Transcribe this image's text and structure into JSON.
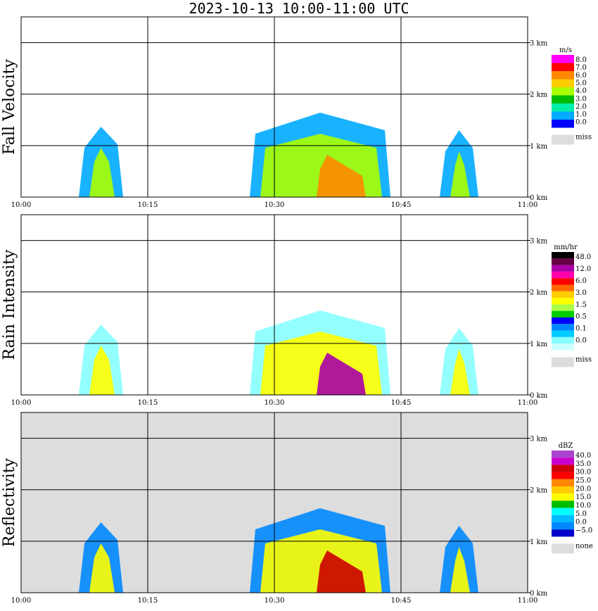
{
  "title": "2023-10-13   10:00-11:00 UTC",
  "chart_data": [
    {
      "type": "heatmap",
      "ylabel": "Fall Velocity",
      "x_ticks": [
        "10:00",
        "10:15",
        "10:30",
        "10:45",
        "11:00"
      ],
      "y_ticks": [
        "0 km",
        "1 km",
        "2 km",
        "3 km"
      ],
      "xlim_minutes": [
        0,
        60
      ],
      "ylim_km": [
        0,
        3.5
      ],
      "colorbar": {
        "unit": "m/s",
        "labels": [
          "8.0",
          "7.0",
          "6.0",
          "5.0",
          "4.0",
          "3.0",
          "2.0",
          "1.0",
          "0.0"
        ],
        "colors": [
          "#ff00ff",
          "#ff0000",
          "#ff8800",
          "#ffcc00",
          "#aaff00",
          "#00bb00",
          "#00eeaa",
          "#00aaff",
          "#0000ff"
        ],
        "missing_label": "miss"
      }
    },
    {
      "type": "heatmap",
      "ylabel": "Rain Intensity",
      "x_ticks": [
        "10:00",
        "10:15",
        "10:30",
        "10:45",
        "11:00"
      ],
      "y_ticks": [
        "0 km",
        "1 km",
        "2 km",
        "3 km"
      ],
      "xlim_minutes": [
        0,
        60
      ],
      "ylim_km": [
        0,
        3.5
      ],
      "colorbar": {
        "unit": "mm/hr",
        "labels": [
          "48.0",
          "12.0",
          "6.0",
          "3.0",
          "1.5",
          "0.5",
          "0.1",
          "0.0"
        ],
        "colors": [
          "#000000",
          "#660044",
          "#aa00aa",
          "#ff00aa",
          "#ff0000",
          "#ff6600",
          "#ffcc00",
          "#ffff00",
          "#aaff44",
          "#00cc00",
          "#0000ff",
          "#0088ff",
          "#00ccff",
          "#88ffff",
          "#ccffff"
        ],
        "missing_label": "miss"
      }
    },
    {
      "type": "heatmap",
      "ylabel": "Reflectivity",
      "x_ticks": [
        "10:00",
        "10:15",
        "10:30",
        "10:45",
        "11:00"
      ],
      "y_ticks": [
        "0 km",
        "1 km",
        "2 km",
        "3 km"
      ],
      "xlim_minutes": [
        0,
        60
      ],
      "ylim_km": [
        0,
        3.5
      ],
      "colorbar": {
        "unit": "dBZ",
        "labels": [
          "40.0",
          "35.0",
          "30.0",
          "25.0",
          "20.0",
          "15.0",
          "10.0",
          "5.0",
          "0.0",
          "−5.0"
        ],
        "colors": [
          "#aa44cc",
          "#cc00cc",
          "#cc0000",
          "#ff0000",
          "#ff8800",
          "#ffcc00",
          "#ffff00",
          "#00bb00",
          "#00ffff",
          "#00bbff",
          "#0088ff",
          "#0000cc"
        ],
        "missing_label": "none"
      }
    }
  ],
  "colors": {
    "axis": "#000000",
    "missing": "#dddddd",
    "panel_bg_reflectivity": "#dddddd"
  }
}
